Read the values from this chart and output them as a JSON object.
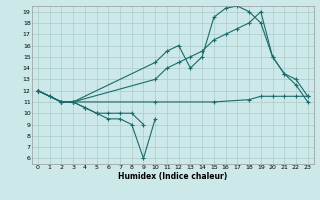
{
  "xlabel": "Humidex (Indice chaleur)",
  "background_color": "#cce8e8",
  "grid_color": "#aacccc",
  "line_color": "#1a6b6b",
  "xlim": [
    -0.5,
    23.5
  ],
  "ylim": [
    5.5,
    19.5
  ],
  "xticks": [
    0,
    1,
    2,
    3,
    4,
    5,
    6,
    7,
    8,
    9,
    10,
    11,
    12,
    13,
    14,
    15,
    16,
    17,
    18,
    19,
    20,
    21,
    22,
    23
  ],
  "yticks": [
    6,
    7,
    8,
    9,
    10,
    11,
    12,
    13,
    14,
    15,
    16,
    17,
    18,
    19
  ],
  "lines": [
    {
      "x": [
        0,
        1,
        2,
        3,
        4,
        5,
        6,
        7,
        8,
        9,
        10
      ],
      "y": [
        12,
        11.5,
        11,
        11,
        10.5,
        10,
        9.5,
        9.5,
        9,
        6,
        9.5
      ]
    },
    {
      "x": [
        0,
        1,
        2,
        3,
        4,
        5,
        6,
        7,
        8,
        9
      ],
      "y": [
        12,
        11.5,
        11,
        11,
        10.5,
        10,
        10,
        10,
        10,
        9
      ]
    },
    {
      "x": [
        0,
        2,
        3,
        10,
        11,
        12,
        13,
        14,
        15,
        16,
        17,
        18,
        19,
        20,
        21,
        22,
        23
      ],
      "y": [
        12,
        11,
        11,
        14.5,
        15.5,
        16,
        14,
        15,
        18.5,
        19.3,
        19.5,
        19,
        18,
        15,
        13.5,
        12.5,
        11
      ]
    },
    {
      "x": [
        0,
        2,
        3,
        10,
        11,
        12,
        13,
        14,
        15,
        16,
        17,
        18,
        19,
        20,
        21,
        22,
        23
      ],
      "y": [
        12,
        11,
        11,
        13,
        14,
        14.5,
        15,
        15.5,
        16.5,
        17,
        17.5,
        18,
        19,
        15,
        13.5,
        13,
        11.5
      ]
    },
    {
      "x": [
        0,
        2,
        3,
        10,
        15,
        18,
        19,
        20,
        21,
        22,
        23
      ],
      "y": [
        12,
        11,
        11,
        11,
        11,
        11.2,
        11.5,
        11.5,
        11.5,
        11.5,
        11.5
      ]
    }
  ]
}
